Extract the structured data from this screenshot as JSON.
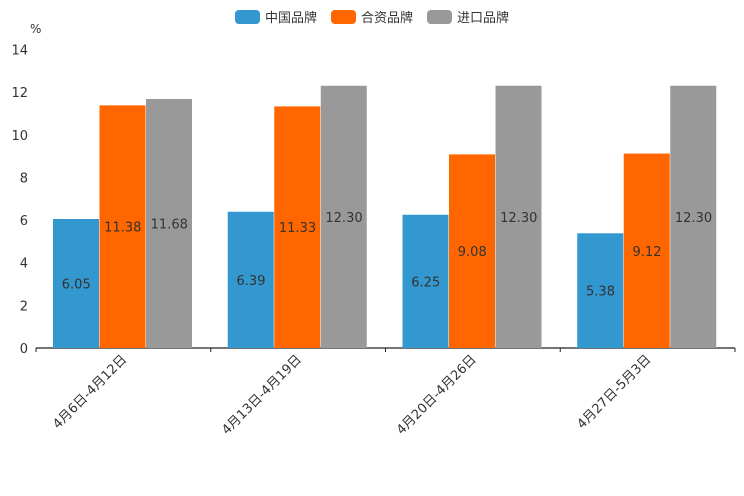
{
  "chart_data": {
    "type": "bar",
    "unit": "%",
    "categories": [
      "4月6日-4月12日",
      "4月13日-4月19日",
      "4月20日-4月26日",
      "4月27日-5月3日"
    ],
    "series": [
      {
        "name": "中国品牌",
        "color": "#3398D0",
        "values": [
          6.05,
          6.39,
          6.25,
          5.38
        ]
      },
      {
        "name": "合资品牌",
        "color": "#FF6600",
        "values": [
          11.38,
          11.33,
          9.08,
          9.12
        ]
      },
      {
        "name": "进口品牌",
        "color": "#999999",
        "values": [
          11.68,
          12.3,
          12.3,
          12.3
        ]
      }
    ],
    "data_labels": [
      [
        "6.05",
        "6.39",
        "6.25",
        "5.38"
      ],
      [
        "11.38",
        "11.33",
        "9.08",
        "9.12"
      ],
      [
        "11.68",
        "12.30",
        "12.30",
        "12.30"
      ]
    ],
    "yticks": [
      0,
      2,
      4,
      6,
      8,
      10,
      12,
      14
    ],
    "ylim": [
      0,
      14
    ],
    "legend_position": "top-center"
  }
}
